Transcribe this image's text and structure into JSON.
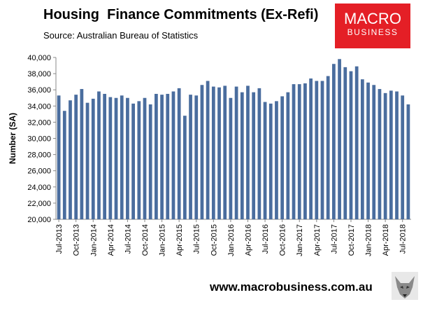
{
  "header": {
    "title": "Housing  Finance Commitments (Ex-Refi)",
    "source": "Source: Australian Bureau of Statistics"
  },
  "logo": {
    "line1": "MACRO",
    "line2": "BUSINESS",
    "color": "#e41f26"
  },
  "footer": {
    "url": "www.macrobusiness.com.au"
  },
  "wolf_icon": "wolf-head-icon",
  "chart_data": {
    "type": "bar",
    "title": "Housing  Finance Commitments (Ex-Refi)",
    "ylabel": "Number (SA)",
    "xlabel": "",
    "ylim": [
      20000,
      40000
    ],
    "yticks": [
      20000,
      22000,
      24000,
      26000,
      28000,
      30000,
      32000,
      34000,
      36000,
      38000,
      40000
    ],
    "ytick_labels": [
      "20,000",
      "22,000",
      "24,000",
      "26,000",
      "28,000",
      "30,000",
      "32,000",
      "34,000",
      "36,000",
      "38,000",
      "40,000"
    ],
    "bar_color": "#4a6d9e",
    "categories": [
      "Jul-2013",
      "Aug-2013",
      "Sep-2013",
      "Oct-2013",
      "Nov-2013",
      "Dec-2013",
      "Jan-2014",
      "Feb-2014",
      "Mar-2014",
      "Apr-2014",
      "May-2014",
      "Jun-2014",
      "Jul-2014",
      "Aug-2014",
      "Sep-2014",
      "Oct-2014",
      "Nov-2014",
      "Dec-2014",
      "Jan-2015",
      "Feb-2015",
      "Mar-2015",
      "Apr-2015",
      "May-2015",
      "Jun-2015",
      "Jul-2015",
      "Aug-2015",
      "Sep-2015",
      "Oct-2015",
      "Nov-2015",
      "Dec-2015",
      "Jan-2016",
      "Feb-2016",
      "Mar-2016",
      "Apr-2016",
      "May-2016",
      "Jun-2016",
      "Jul-2016",
      "Aug-2016",
      "Sep-2016",
      "Oct-2016",
      "Nov-2016",
      "Dec-2016",
      "Jan-2017",
      "Feb-2017",
      "Mar-2017",
      "Apr-2017",
      "May-2017",
      "Jun-2017",
      "Jul-2017",
      "Aug-2017",
      "Sep-2017",
      "Oct-2017",
      "Nov-2017",
      "Dec-2017",
      "Jan-2018",
      "Feb-2018",
      "Mar-2018",
      "Apr-2018",
      "May-2018",
      "Jun-2018",
      "Jul-2018",
      "Aug-2018"
    ],
    "tick_labels_shown": [
      "Jul-2013",
      "Oct-2013",
      "Jan-2014",
      "Apr-2014",
      "Jul-2014",
      "Oct-2014",
      "Jan-2015",
      "Apr-2015",
      "Jul-2015",
      "Oct-2015",
      "Jan-2016",
      "Apr-2016",
      "Jul-2016",
      "Oct-2016",
      "Jan-2017",
      "Apr-2017",
      "Jul-2017",
      "Oct-2017",
      "Jan-2018",
      "Apr-2018",
      "Jul-2018"
    ],
    "values": [
      35300,
      33400,
      34700,
      35400,
      36100,
      34400,
      34900,
      35800,
      35500,
      35100,
      35000,
      35300,
      35000,
      34300,
      34600,
      35000,
      34200,
      35500,
      35400,
      35500,
      35800,
      36200,
      32800,
      35400,
      35300,
      36600,
      37100,
      36400,
      36300,
      36500,
      35000,
      36400,
      35700,
      36500,
      35700,
      36200,
      34500,
      34300,
      34600,
      35200,
      35700,
      36700,
      36700,
      36800,
      37400,
      37100,
      37100,
      37700,
      39200,
      39800,
      38800,
      38300,
      38900,
      37300,
      36900,
      36600,
      36100,
      35600,
      35900,
      35800,
      35300,
      34200
    ],
    "grid": false,
    "legend": "none"
  }
}
